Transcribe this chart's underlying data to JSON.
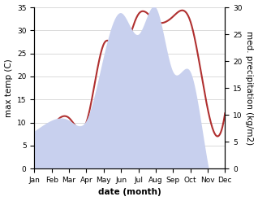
{
  "months": [
    "Jan",
    "Feb",
    "Mar",
    "Apr",
    "May",
    "Jun",
    "Jul",
    "Aug",
    "Sep",
    "Oct",
    "Nov",
    "Dec"
  ],
  "temperature": [
    4,
    9,
    11,
    10,
    27,
    25,
    33.5,
    32,
    33,
    32,
    13,
    12
  ],
  "precipitation": [
    7,
    9,
    9,
    9,
    21,
    29,
    25,
    30,
    18,
    18,
    1,
    0.5
  ],
  "temp_color": "#b03030",
  "precip_fill_color": "#c8d0ee",
  "temp_ylim": [
    0,
    35
  ],
  "precip_ylim": [
    0,
    30
  ],
  "temp_yticks": [
    0,
    5,
    10,
    15,
    20,
    25,
    30,
    35
  ],
  "precip_yticks": [
    0,
    5,
    10,
    15,
    20,
    25,
    30
  ],
  "ylabel_left": "max temp (C)",
  "ylabel_right": "med. precipitation (kg/m2)",
  "xlabel": "date (month)",
  "bg_color": "#ffffff",
  "label_fontsize": 7.5,
  "tick_fontsize": 6.5
}
